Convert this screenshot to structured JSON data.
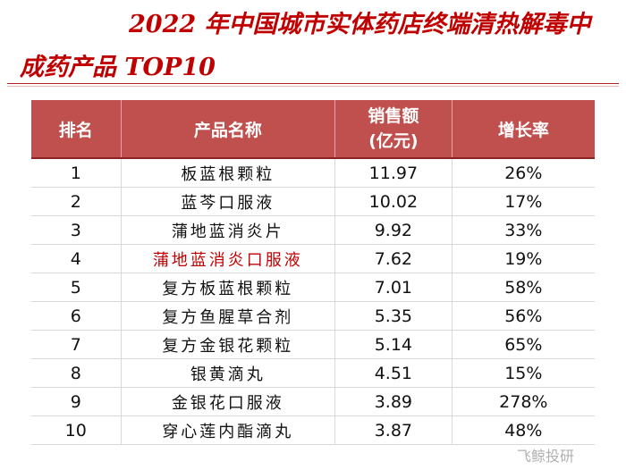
{
  "title": {
    "line1": "2022 年中国城市实体药店终端清热解毒中",
    "line2": "成药产品 TOP10"
  },
  "table": {
    "headers": {
      "rank": "排名",
      "name": "产品名称",
      "sales_line1": "销售额",
      "sales_line2": "(亿元)",
      "growth": "增长率"
    },
    "rows": [
      {
        "rank": "1",
        "name": "板蓝根颗粒",
        "sales": "11.97",
        "growth": "26%"
      },
      {
        "rank": "2",
        "name": "蓝芩口服液",
        "sales": "10.02",
        "growth": "17%"
      },
      {
        "rank": "3",
        "name": "蒲地蓝消炎片",
        "sales": "9.92",
        "growth": "33%"
      },
      {
        "rank": "4",
        "name": "蒲地蓝消炎口服液",
        "sales": "7.62",
        "growth": "19%"
      },
      {
        "rank": "5",
        "name": "复方板蓝根颗粒",
        "sales": "7.01",
        "growth": "58%"
      },
      {
        "rank": "6",
        "name": "复方鱼腥草合剂",
        "sales": "5.35",
        "growth": "56%"
      },
      {
        "rank": "7",
        "name": "复方金银花颗粒",
        "sales": "5.14",
        "growth": "65%"
      },
      {
        "rank": "8",
        "name": "银黄滴丸",
        "sales": "4.51",
        "growth": "15%"
      },
      {
        "rank": "9",
        "name": "金银花口服液",
        "sales": "3.89",
        "growth": "278%"
      },
      {
        "rank": "10",
        "name": "穿心莲内酯滴丸",
        "sales": "3.87",
        "growth": "48%"
      }
    ]
  },
  "watermark": "飞鲸投研",
  "colors": {
    "title": "#c00000",
    "header_bg": "#c0504d",
    "highlight_text": "#c00000"
  }
}
